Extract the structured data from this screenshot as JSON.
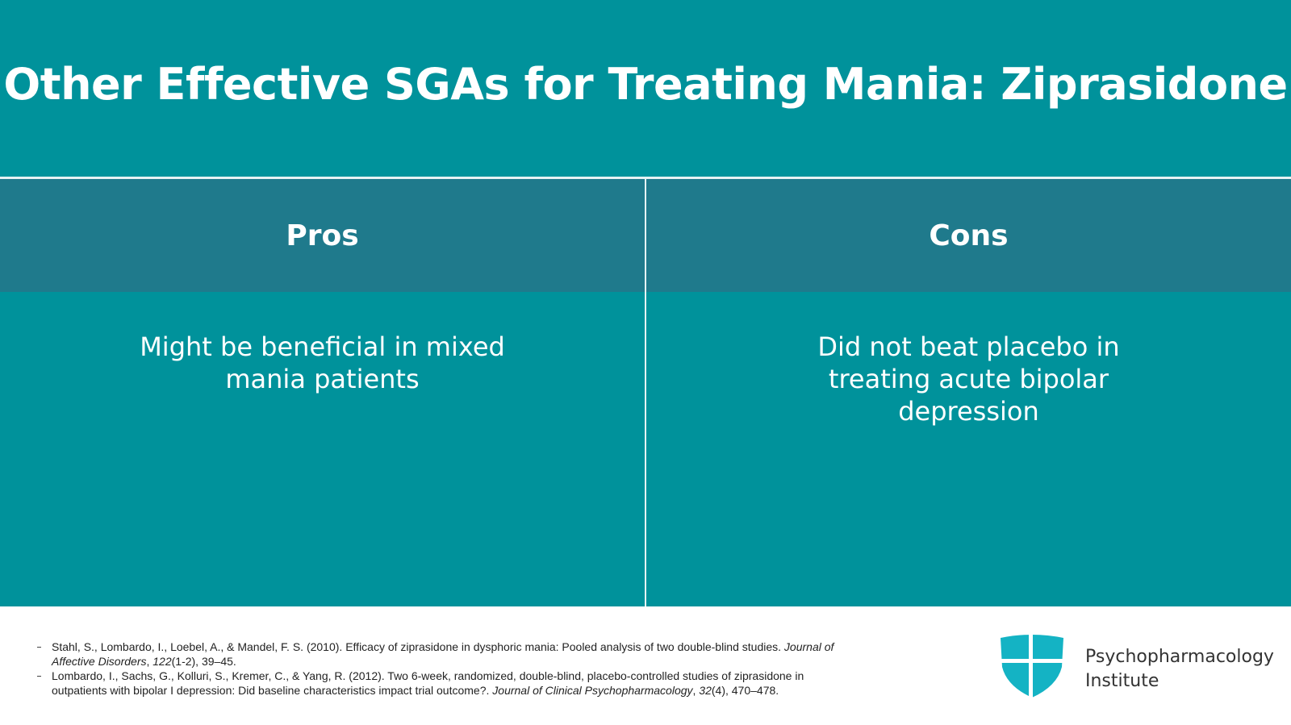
{
  "header": {
    "title": "Other Effective SGAs for Treating Mania: Ziprasidone"
  },
  "table": {
    "headers": [
      "Pros",
      "Cons"
    ],
    "rows": [
      [
        "Might be beneficial in mixed mania patients",
        "Did not beat placebo in treating acute bipolar depression"
      ]
    ]
  },
  "references": [
    [
      {
        "text": "Stahl, S., Lombardo, I., Loebel, A., & Mandel, F. S. (2010). Efficacy of ziprasidone in dysphoric mania: Pooled analysis of two double-blind studies. ",
        "italic": false
      },
      {
        "text": "Journal of Affective Disorders",
        "italic": true
      },
      {
        "text": ", ",
        "italic": false
      },
      {
        "text": "122",
        "italic": true
      },
      {
        "text": "(1-2), 39–45.",
        "italic": false
      }
    ],
    [
      {
        "text": "Lombardo, I., Sachs, G., Kolluri, S., Kremer, C., & Yang, R. (2012). Two 6-week, randomized, double-blind, placebo-controlled studies of ziprasidone in outpatients with bipolar I depression: Did baseline characteristics impact trial outcome?. ",
        "italic": false
      },
      {
        "text": "Journal of Clinical Psychopharmacology",
        "italic": true
      },
      {
        "text": ", ",
        "italic": false
      },
      {
        "text": "32",
        "italic": true
      },
      {
        "text": "(4), 470–478.",
        "italic": false
      }
    ]
  ],
  "logo": {
    "lines": [
      "Psychopharmacology",
      "Institute"
    ]
  }
}
